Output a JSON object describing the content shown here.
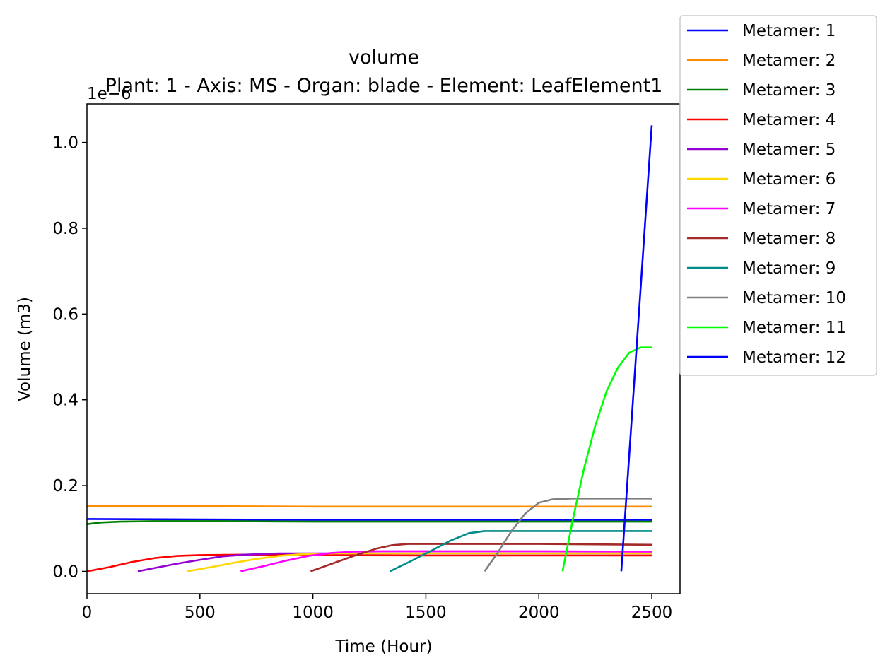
{
  "chart_data": {
    "type": "line",
    "title": "volume",
    "subtitle": "Plant: 1 - Axis: MS - Organ: blade - Element: LeafElement1",
    "xlabel": "Time (Hour)",
    "ylabel": "Volume (m3)",
    "y_offset_label": "1e−6",
    "xlim": [
      0,
      2625
    ],
    "ylim": [
      -0.052,
      1.09
    ],
    "xticks": [
      0,
      500,
      1000,
      1500,
      2000,
      2500
    ],
    "xtick_labels": [
      "0",
      "500",
      "1000",
      "1500",
      "2000",
      "2500"
    ],
    "yticks": [
      0.0,
      0.2,
      0.4,
      0.6,
      0.8,
      1.0
    ],
    "ytick_labels": [
      "0.0",
      "0.2",
      "0.4",
      "0.6",
      "0.8",
      "1.0"
    ],
    "grid": false,
    "legend_position": "upper-right-outside",
    "series": [
      {
        "name": "Metamer: 1",
        "color": "#0000ff",
        "x": [
          0,
          500,
          1000,
          1500,
          2000,
          2500
        ],
        "y": [
          0.122,
          0.121,
          0.12,
          0.12,
          0.12,
          0.12
        ]
      },
      {
        "name": "Metamer: 2",
        "color": "#ff8c00",
        "x": [
          0,
          500,
          1000,
          1500,
          2000,
          2500
        ],
        "y": [
          0.152,
          0.152,
          0.151,
          0.151,
          0.151,
          0.151
        ]
      },
      {
        "name": "Metamer: 3",
        "color": "#008000",
        "x": [
          0,
          60,
          150,
          300,
          600,
          1000,
          1500,
          2000,
          2500
        ],
        "y": [
          0.11,
          0.114,
          0.116,
          0.117,
          0.117,
          0.116,
          0.116,
          0.116,
          0.116
        ]
      },
      {
        "name": "Metamer: 4",
        "color": "#ff0000",
        "x": [
          0,
          100,
          200,
          300,
          400,
          500,
          700,
          1000,
          1500,
          2000,
          2500
        ],
        "y": [
          0.0,
          0.01,
          0.022,
          0.031,
          0.036,
          0.038,
          0.039,
          0.038,
          0.037,
          0.037,
          0.037
        ]
      },
      {
        "name": "Metamer: 5",
        "color": "#9400d3",
        "x": [
          225,
          300,
          400,
          500,
          600,
          700,
          850,
          1000,
          1500,
          2000,
          2500
        ],
        "y": [
          0.0,
          0.008,
          0.018,
          0.027,
          0.035,
          0.039,
          0.042,
          0.042,
          0.042,
          0.042,
          0.042
        ]
      },
      {
        "name": "Metamer: 6",
        "color": "#ffd700",
        "x": [
          445,
          550,
          650,
          750,
          850,
          950,
          1100,
          1300,
          1500,
          2000,
          2500
        ],
        "y": [
          0.0,
          0.01,
          0.02,
          0.029,
          0.036,
          0.04,
          0.042,
          0.042,
          0.042,
          0.042,
          0.042
        ]
      },
      {
        "name": "Metamer: 7",
        "color": "#ff00ff",
        "x": [
          680,
          780,
          880,
          980,
          1080,
          1180,
          1300,
          1500,
          2000,
          2500
        ],
        "y": [
          0.0,
          0.012,
          0.025,
          0.036,
          0.043,
          0.046,
          0.047,
          0.047,
          0.047,
          0.046
        ]
      },
      {
        "name": "Metamer: 8",
        "color": "#a52a2a",
        "x": [
          990,
          1080,
          1180,
          1280,
          1350,
          1420,
          1500,
          2000,
          2500
        ],
        "y": [
          0.0,
          0.017,
          0.036,
          0.053,
          0.061,
          0.064,
          0.064,
          0.064,
          0.062
        ]
      },
      {
        "name": "Metamer: 9",
        "color": "#008b8b",
        "x": [
          1340,
          1430,
          1520,
          1610,
          1690,
          1760,
          1850,
          2000,
          2500
        ],
        "y": [
          0.0,
          0.023,
          0.047,
          0.072,
          0.089,
          0.094,
          0.094,
          0.094,
          0.094
        ]
      },
      {
        "name": "Metamer: 10",
        "color": "#808080",
        "x": [
          1760,
          1820,
          1880,
          1940,
          2000,
          2060,
          2150,
          2300,
          2500
        ],
        "y": [
          0.0,
          0.045,
          0.095,
          0.135,
          0.16,
          0.168,
          0.17,
          0.17,
          0.17
        ]
      },
      {
        "name": "Metamer: 11",
        "color": "#00ff00",
        "x": [
          2105,
          2150,
          2200,
          2250,
          2300,
          2350,
          2400,
          2450,
          2500
        ],
        "y": [
          0.0,
          0.12,
          0.24,
          0.34,
          0.42,
          0.475,
          0.51,
          0.522,
          0.522
        ]
      },
      {
        "name": "Metamer: 12",
        "color": "#0000ff",
        "x": [
          2365,
          2500
        ],
        "y": [
          0.0,
          1.04
        ]
      }
    ]
  }
}
